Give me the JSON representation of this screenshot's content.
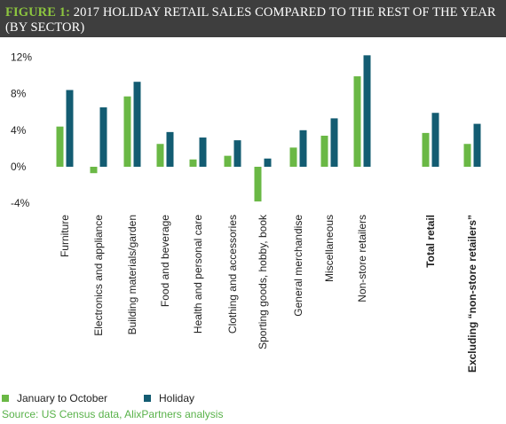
{
  "title": {
    "figure_label": "FIGURE 1:",
    "line1_text": "2017 HOLIDAY RETAIL SALES COMPARED TO THE REST OF THE YEAR",
    "line2_text": "(BY SECTOR)"
  },
  "colors": {
    "jan_oct": "#6ab845",
    "holiday": "#135c72",
    "title_bg": "#3e3e3e",
    "figure_label": "#8dc63f",
    "source": "#59b24a"
  },
  "legend": {
    "jan_oct_label": "January to October",
    "holiday_label": "Holiday"
  },
  "source_text": "Source: US Census data, AlixPartners analysis",
  "chart_data": {
    "type": "bar",
    "title": "2017 HOLIDAY RETAIL SALES COMPARED TO THE REST OF THE YEAR (BY SECTOR)",
    "ylim": [
      -4,
      12
    ],
    "yticks": [
      12,
      8,
      4,
      0,
      -4
    ],
    "ytick_labels": [
      "12%",
      "8%",
      "4%",
      "0%",
      "-4%"
    ],
    "grid": false,
    "legend_position": "bottom-left",
    "categories": [
      "Furniture",
      "Electronics and appliance",
      "Building materials/garden",
      "Food and beverage",
      "Health and personal care",
      "Clothing and accessories",
      "Sporting goods, hobby, book",
      "General merchandise",
      "Miscellaneous",
      "Non-store retailers",
      "Total retail",
      "Excluding “non-store retailers”"
    ],
    "bold_categories": [
      "Total retail",
      "Excluding “non-store retailers”"
    ],
    "series": [
      {
        "name": "January to October",
        "values": [
          4.4,
          -0.7,
          7.7,
          2.5,
          0.8,
          1.2,
          -3.8,
          2.1,
          3.4,
          9.9,
          3.7,
          2.5
        ]
      },
      {
        "name": "Holiday",
        "values": [
          8.4,
          6.5,
          9.3,
          3.8,
          3.2,
          2.9,
          0.9,
          4.0,
          5.3,
          12.2,
          5.9,
          4.7
        ]
      }
    ]
  }
}
